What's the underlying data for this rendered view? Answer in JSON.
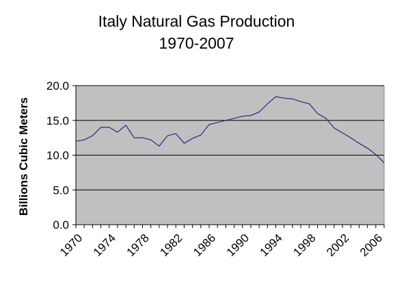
{
  "chart_data": {
    "type": "line",
    "title_lines": [
      "Italy Natural Gas Production",
      "1970-2007"
    ],
    "xlabel": "",
    "ylabel": "Billions Cubic Meters",
    "xlim": [
      1970,
      2007
    ],
    "ylim": [
      0,
      20
    ],
    "y_ticks": [
      "0.0",
      "5.0",
      "10.0",
      "15.0",
      "20.0"
    ],
    "x_ticks": [
      "1970",
      "1974",
      "1978",
      "1982",
      "1986",
      "1990",
      "1994",
      "1998",
      "2002",
      "2006"
    ],
    "grid": true,
    "legend": "none",
    "plot_background": "#c0c0c0",
    "line_color": "#1f2a8c",
    "series": [
      {
        "x": [
          1970,
          1971,
          1972,
          1973,
          1974,
          1975,
          1976,
          1977,
          1978,
          1979,
          1980,
          1981,
          1982,
          1983,
          1984,
          1985,
          1986,
          1987,
          1988,
          1989,
          1990,
          1991,
          1992,
          1993,
          1994,
          1995,
          1996,
          1997,
          1998,
          1999,
          2000,
          2001,
          2002,
          2003,
          2004,
          2005,
          2006,
          2007
        ],
        "values": [
          12.0,
          12.2,
          12.8,
          14.0,
          14.0,
          13.3,
          14.3,
          12.5,
          12.5,
          12.2,
          11.3,
          12.8,
          13.1,
          11.7,
          12.4,
          12.9,
          14.4,
          14.7,
          15.0,
          15.3,
          15.6,
          15.7,
          16.2,
          17.4,
          18.4,
          18.2,
          18.1,
          17.7,
          17.4,
          16.0,
          15.3,
          13.9,
          13.2,
          12.5,
          11.7,
          11.0,
          10.1,
          8.9
        ]
      }
    ]
  }
}
